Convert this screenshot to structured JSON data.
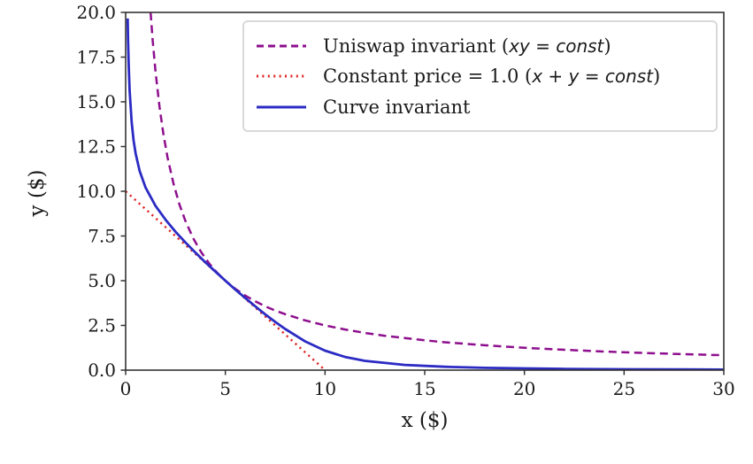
{
  "figure": {
    "background": "#ffffff"
  },
  "chart_data": {
    "type": "line",
    "title": "",
    "xlabel": "x ($)",
    "ylabel": "y ($)",
    "xlim": [
      0,
      30
    ],
    "ylim": [
      0,
      20
    ],
    "grid": false,
    "legend_position": "upper right",
    "axis_color": "#333333",
    "text_color": "#1a1a1a",
    "xticks": {
      "values": [
        0,
        5,
        10,
        15,
        20,
        25,
        30
      ],
      "labels": [
        "0",
        "5",
        "10",
        "15",
        "20",
        "25",
        "30"
      ]
    },
    "yticks": {
      "values": [
        0,
        2.5,
        5,
        7.5,
        10,
        12.5,
        15,
        17.5,
        20
      ],
      "labels": [
        "0.0",
        "2.5",
        "5.0",
        "7.5",
        "10.0",
        "12.5",
        "15.0",
        "17.5",
        "20.0"
      ]
    },
    "series": [
      {
        "label": "Uniswap invariant (xy = const)",
        "label_plain": "Uniswap invariant (",
        "label_math": "xy = const",
        "label_close": ")",
        "style": "dashed",
        "color": "#8e0f8e",
        "points": [
          [
            1.25,
            20
          ],
          [
            1.35,
            18.52
          ],
          [
            1.5,
            16.67
          ],
          [
            1.7,
            14.71
          ],
          [
            1.9,
            13.16
          ],
          [
            2.1,
            11.9
          ],
          [
            2.4,
            10.42
          ],
          [
            2.7,
            9.26
          ],
          [
            3,
            8.33
          ],
          [
            3.4,
            7.35
          ],
          [
            3.8,
            6.58
          ],
          [
            4.2,
            5.95
          ],
          [
            4.6,
            5.43
          ],
          [
            5,
            5
          ],
          [
            5.5,
            4.55
          ],
          [
            6,
            4.17
          ],
          [
            6.5,
            3.85
          ],
          [
            7,
            3.57
          ],
          [
            7.5,
            3.33
          ],
          [
            8,
            3.13
          ],
          [
            9,
            2.78
          ],
          [
            10,
            2.5
          ],
          [
            11,
            2.27
          ],
          [
            12,
            2.08
          ],
          [
            13,
            1.92
          ],
          [
            14,
            1.79
          ],
          [
            15,
            1.67
          ],
          [
            16,
            1.56
          ],
          [
            18,
            1.39
          ],
          [
            20,
            1.25
          ],
          [
            22,
            1.14
          ],
          [
            24,
            1.04
          ],
          [
            26,
            0.96
          ],
          [
            28,
            0.89
          ],
          [
            30,
            0.83
          ]
        ]
      },
      {
        "label": "Constant price = 1.0 (x + y = const)",
        "label_plain": "Constant price = 1.0 (",
        "label_math": "x + y = const",
        "label_close": ")",
        "style": "dotted",
        "color": "#e02525",
        "points": [
          [
            0,
            10
          ],
          [
            10,
            0
          ]
        ]
      },
      {
        "label": "Curve invariant",
        "label_plain": "Curve invariant",
        "label_math": "",
        "label_close": "",
        "style": "solid",
        "color": "#2b2bc4",
        "points": [
          [
            0.1,
            19.66
          ],
          [
            0.12,
            18.45
          ],
          [
            0.15,
            17.13
          ],
          [
            0.2,
            15.63
          ],
          [
            0.3,
            13.87
          ],
          [
            0.4,
            12.83
          ],
          [
            0.5,
            12.11
          ],
          [
            0.7,
            11.14
          ],
          [
            1,
            10.21
          ],
          [
            1.5,
            9.18
          ],
          [
            2,
            8.41
          ],
          [
            2.5,
            7.74
          ],
          [
            3,
            7.14
          ],
          [
            3.5,
            6.57
          ],
          [
            4,
            6.03
          ],
          [
            4.5,
            5.51
          ],
          [
            5,
            5
          ],
          [
            5.5,
            4.51
          ],
          [
            6,
            4.03
          ],
          [
            6.5,
            3.57
          ],
          [
            7,
            3.12
          ],
          [
            7.5,
            2.7
          ],
          [
            8,
            2.3
          ],
          [
            9,
            1.61
          ],
          [
            10,
            1.09
          ],
          [
            11,
            0.74
          ],
          [
            12,
            0.52
          ],
          [
            14,
            0.29
          ],
          [
            16,
            0.19
          ],
          [
            18,
            0.13
          ],
          [
            20,
            0.1
          ],
          [
            22,
            0.07
          ],
          [
            25,
            0.05
          ],
          [
            28,
            0.04
          ],
          [
            30,
            0.03
          ]
        ]
      }
    ]
  }
}
